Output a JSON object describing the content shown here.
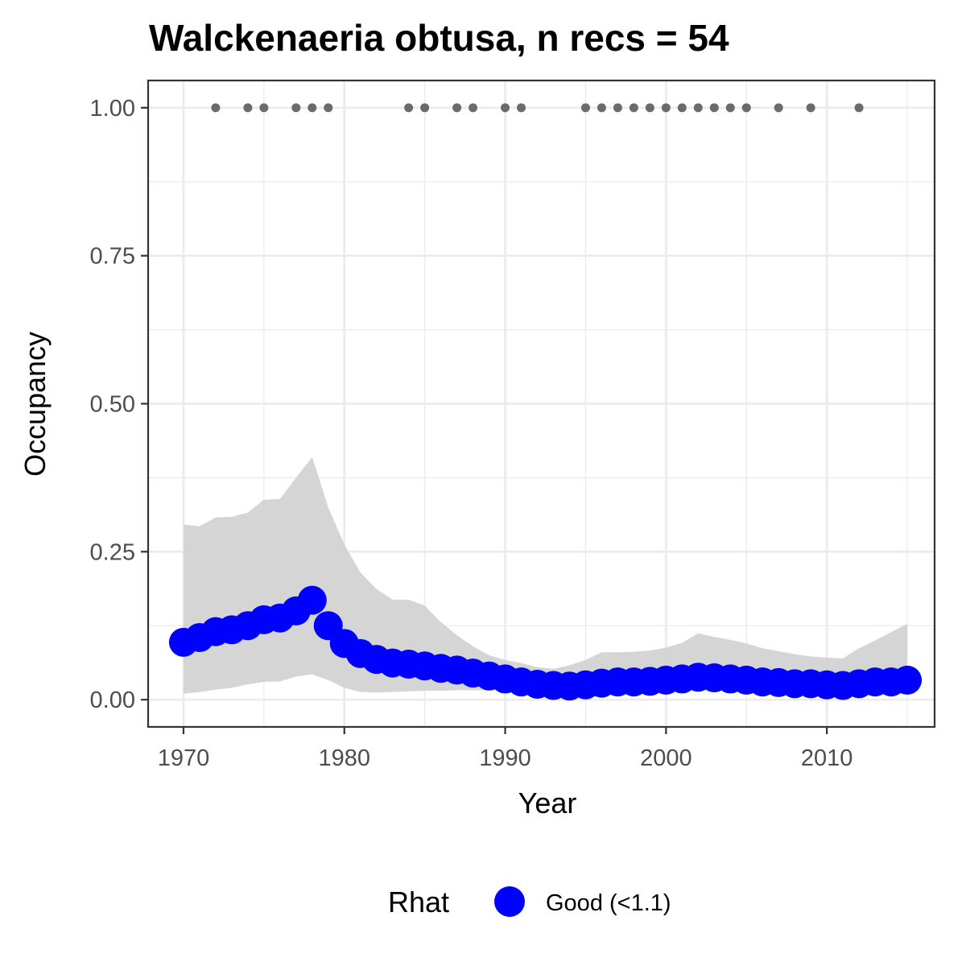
{
  "chart_data": {
    "type": "line",
    "title": "Walckenaeria obtusa, n recs = 54",
    "xlabel": "Year",
    "ylabel": "Occupancy",
    "xlim": [
      1967.8,
      2016.7
    ],
    "ylim": [
      -0.046,
      1.046
    ],
    "x_ticks": [
      1970,
      1980,
      1990,
      2000,
      2010
    ],
    "x_tick_labels": [
      "1970",
      "1980",
      "1990",
      "2000",
      "2010"
    ],
    "y_ticks": [
      0,
      0.25,
      0.5,
      0.75,
      1.0
    ],
    "y_tick_labels": [
      "0.00",
      "0.25",
      "0.50",
      "0.75",
      "1.00"
    ],
    "grid": true,
    "legend": {
      "position": "bottom",
      "title": "Rhat",
      "entries": [
        {
          "label": "Good (<1.1)",
          "color": "#0000ff"
        }
      ]
    },
    "colors": {
      "points": "#0000ff",
      "ribbon": "#d3d3d3",
      "records": "#6b6b6b",
      "grid": "#ebebeb",
      "panel_border": "#333333"
    },
    "series": [
      {
        "legend_entry": "Good (<1.1)",
        "x": [
          1970,
          1971,
          1972,
          1973,
          1974,
          1975,
          1976,
          1977,
          1978,
          1979,
          1980,
          1981,
          1982,
          1983,
          1984,
          1985,
          1986,
          1987,
          1988,
          1989,
          1990,
          1991,
          1992,
          1993,
          1994,
          1995,
          1996,
          1997,
          1998,
          1999,
          2000,
          2001,
          2002,
          2003,
          2004,
          2005,
          2006,
          2007,
          2008,
          2009,
          2010,
          2011,
          2012,
          2013,
          2014,
          2015
        ],
        "y": [
          0.097,
          0.105,
          0.115,
          0.118,
          0.125,
          0.135,
          0.138,
          0.15,
          0.168,
          0.125,
          0.095,
          0.078,
          0.068,
          0.062,
          0.06,
          0.057,
          0.053,
          0.05,
          0.045,
          0.04,
          0.035,
          0.03,
          0.026,
          0.024,
          0.023,
          0.025,
          0.028,
          0.03,
          0.03,
          0.031,
          0.033,
          0.035,
          0.038,
          0.037,
          0.035,
          0.033,
          0.03,
          0.029,
          0.027,
          0.027,
          0.025,
          0.024,
          0.027,
          0.03,
          0.03,
          0.033
        ],
        "lower": [
          0.01,
          0.013,
          0.017,
          0.02,
          0.026,
          0.03,
          0.031,
          0.039,
          0.043,
          0.033,
          0.02,
          0.013,
          0.012,
          0.013,
          0.014,
          0.015,
          0.015,
          0.016,
          0.016,
          0.016,
          0.016,
          0.014,
          0.012,
          0.011,
          0.011,
          0.012,
          0.013,
          0.014,
          0.014,
          0.014,
          0.015,
          0.016,
          0.017,
          0.017,
          0.016,
          0.015,
          0.013,
          0.012,
          0.011,
          0.011,
          0.01,
          0.009,
          0.009,
          0.009,
          0.009,
          0.01
        ],
        "upper": [
          0.296,
          0.293,
          0.308,
          0.309,
          0.316,
          0.338,
          0.339,
          0.375,
          0.41,
          0.325,
          0.262,
          0.215,
          0.187,
          0.169,
          0.169,
          0.159,
          0.131,
          0.109,
          0.09,
          0.075,
          0.067,
          0.062,
          0.055,
          0.052,
          0.058,
          0.067,
          0.08,
          0.08,
          0.081,
          0.083,
          0.088,
          0.096,
          0.112,
          0.106,
          0.101,
          0.095,
          0.087,
          0.082,
          0.077,
          0.073,
          0.071,
          0.07,
          0.087,
          0.1,
          0.114,
          0.128
        ]
      }
    ],
    "record_years": [
      1972,
      1974,
      1975,
      1977,
      1978,
      1979,
      1984,
      1985,
      1987,
      1988,
      1990,
      1991,
      1995,
      1996,
      1997,
      1998,
      1999,
      2000,
      2001,
      2002,
      2003,
      2004,
      2005,
      2007,
      2009,
      2012
    ],
    "record_value": 1.0
  }
}
